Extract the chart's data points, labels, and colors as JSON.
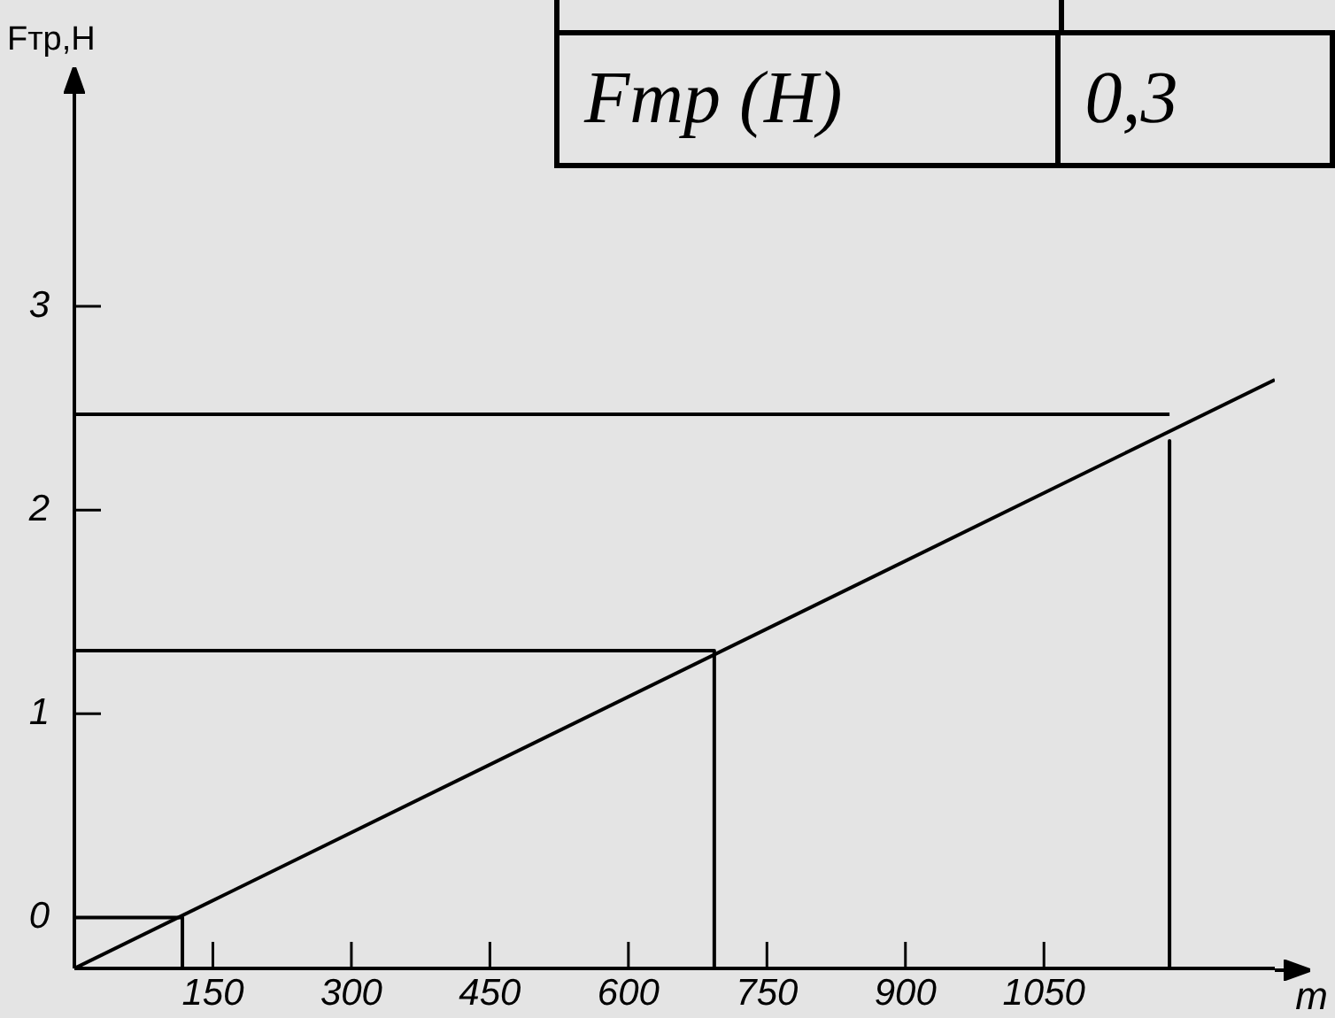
{
  "chart_data": {
    "type": "line",
    "xlabel": "m",
    "ylabel": "Fтр,Н",
    "xlim": [
      0,
      1300
    ],
    "ylim": [
      -0.25,
      4
    ],
    "xticks": [
      150,
      300,
      450,
      600,
      750,
      900,
      1050
    ],
    "yticks": [
      0,
      1,
      2,
      3
    ],
    "series": [
      {
        "color": "#000000",
        "x": [
          0,
          1300
        ],
        "values": [
          -0.25,
          2.64
        ]
      },
      {
        "color": "#000000",
        "x": [
          0,
          117,
          117
        ],
        "values": [
          0,
          0,
          -0.25
        ]
      },
      {
        "color": "#000000",
        "x": [
          0,
          693,
          693
        ],
        "values": [
          1.31,
          1.31,
          -0.25
        ]
      },
      {
        "color": "#000000",
        "x": [
          0,
          1186
        ],
        "values": [
          2.47,
          2.47
        ]
      },
      {
        "color": "#000000",
        "x": [
          1186,
          1186
        ],
        "values": [
          2.34,
          -0.25
        ]
      }
    ],
    "annotations": [
      "Fтр (Н)",
      "0,3"
    ]
  }
}
